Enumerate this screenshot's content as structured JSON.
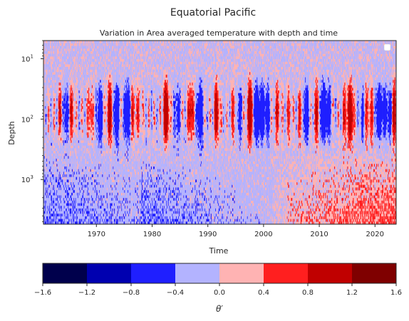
{
  "figure": {
    "suptitle": "Equatorial Pacific"
  },
  "chart_data": {
    "type": "heatmap",
    "title": "Variation in Area averaged temperature with depth and time",
    "xlabel": "Time",
    "ylabel": "Depth",
    "x_ticks": [
      "1970",
      "1980",
      "1990",
      "2000",
      "2010",
      "2020"
    ],
    "x_range": [
      1960.5,
      2023.8
    ],
    "y_ticks": [
      "10^1",
      "10^2",
      "10^3"
    ],
    "y_scale": "log",
    "y_range": [
      5,
      5500
    ],
    "y_inverted": true,
    "colorbar": {
      "label": "θ′",
      "levels": [
        -1.6,
        -1.2,
        -0.8,
        -0.4,
        0.0,
        0.4,
        0.8,
        1.2,
        1.6
      ],
      "level_labels": [
        "−1.6",
        "−1.2",
        "−0.8",
        "−0.4",
        "0.0",
        "0.4",
        "0.8",
        "1.2",
        "1.6"
      ],
      "colors": [
        "#00004c",
        "#0000b0",
        "#1f1fff",
        "#b3b3ff",
        "#ffb3b3",
        "#ff1f1f",
        "#c00000",
        "#7f0000"
      ]
    },
    "legend": "top-right, empty",
    "colors": {
      "cold_strong": "#1f1fff",
      "cold_weak": "#b3b3ff",
      "warm_weak": "#ffb3b3",
      "warm_strong": "#ff1f1f",
      "warm_darker": "#c00000"
    }
  }
}
